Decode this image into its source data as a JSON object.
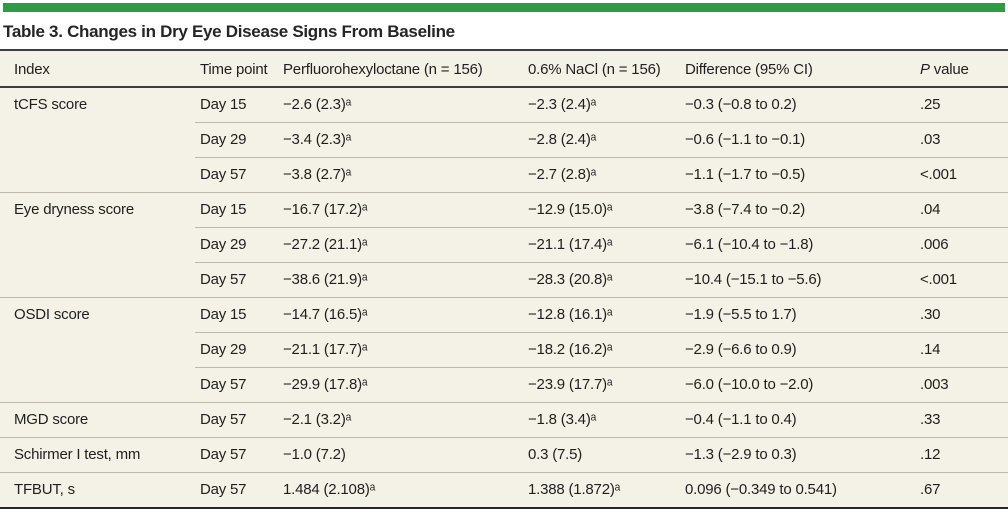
{
  "accent_color": "#2e9c44",
  "table_background": "#f4f1e6",
  "title": "Table 3. Changes in Dry Eye Disease Signs From Baseline",
  "header": {
    "index": "Index",
    "time": "Time point",
    "drug": "Perfluorohexyloctane (n = 156)",
    "nacl": "0.6% NaCl (n = 156)",
    "diff": "Difference (95% CI)",
    "p_italic": "P",
    "p_rest": " value"
  },
  "table": {
    "rows": [
      {
        "index": "tCFS score",
        "time": "Day 15",
        "drug": "−2.6 (2.3)ᵃ",
        "nacl": "−2.3 (2.4)ᵃ",
        "diff": "−0.3 (−0.8 to 0.2)",
        "p": ".25"
      },
      {
        "index": "",
        "time": "Day 29",
        "drug": "−3.4 (2.3)ᵃ",
        "nacl": "−2.8 (2.4)ᵃ",
        "diff": "−0.6 (−1.1 to −0.1)",
        "p": ".03"
      },
      {
        "index": "",
        "time": "Day 57",
        "drug": "−3.8 (2.7)ᵃ",
        "nacl": "−2.7 (2.8)ᵃ",
        "diff": "−1.1 (−1.7 to −0.5)",
        "p": "<.001"
      },
      {
        "index": "Eye dryness score",
        "time": "Day 15",
        "drug": "−16.7 (17.2)ᵃ",
        "nacl": "−12.9 (15.0)ᵃ",
        "diff": "−3.8 (−7.4 to −0.2)",
        "p": ".04"
      },
      {
        "index": "",
        "time": "Day 29",
        "drug": "−27.2 (21.1)ᵃ",
        "nacl": "−21.1 (17.4)ᵃ",
        "diff": "−6.1 (−10.4 to −1.8)",
        "p": ".006"
      },
      {
        "index": "",
        "time": "Day 57",
        "drug": "−38.6 (21.9)ᵃ",
        "nacl": "−28.3 (20.8)ᵃ",
        "diff": "−10.4 (−15.1 to −5.6)",
        "p": "<.001"
      },
      {
        "index": "OSDI score",
        "time": "Day 15",
        "drug": "−14.7 (16.5)ᵃ",
        "nacl": "−12.8 (16.1)ᵃ",
        "diff": "−1.9 (−5.5 to 1.7)",
        "p": ".30"
      },
      {
        "index": "",
        "time": "Day 29",
        "drug": "−21.1 (17.7)ᵃ",
        "nacl": "−18.2 (16.2)ᵃ",
        "diff": "−2.9 (−6.6 to 0.9)",
        "p": ".14"
      },
      {
        "index": "",
        "time": "Day 57",
        "drug": "−29.9 (17.8)ᵃ",
        "nacl": "−23.9 (17.7)ᵃ",
        "diff": "−6.0 (−10.0 to −2.0)",
        "p": ".003"
      },
      {
        "index": "MGD score",
        "time": "Day 57",
        "drug": "−2.1 (3.2)ᵃ",
        "nacl": "−1.8 (3.4)ᵃ",
        "diff": "−0.4 (−1.1 to 0.4)",
        "p": ".33"
      },
      {
        "index": "Schirmer I test, mm",
        "time": "Day 57",
        "drug": "−1.0 (7.2)",
        "nacl": "0.3 (7.5)",
        "diff": "−1.3 (−2.9 to 0.3)",
        "p": ".12"
      },
      {
        "index": "TFBUT, s",
        "time": "Day 57",
        "drug": "1.484 (2.108)ᵃ",
        "nacl": "1.388 (1.872)ᵃ",
        "diff": "0.096 (−0.349 to 0.541)",
        "p": ".67"
      }
    ]
  }
}
